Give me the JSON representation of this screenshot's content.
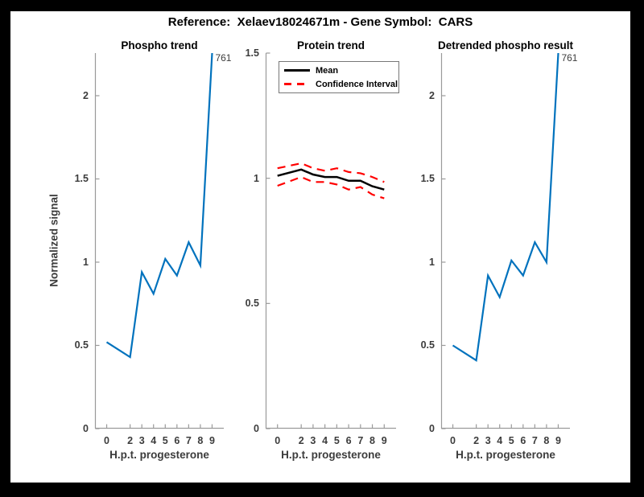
{
  "figure": {
    "title": "Reference:  Xelaev18024671m - Gene Symbol:  CARS"
  },
  "legend": {
    "mean": "Mean",
    "ci": "Confidence Interval"
  },
  "colors": {
    "phospho_line": "#0072BD",
    "mean_line": "#000000",
    "ci_line": "#FF0000",
    "axis": "#9a9a9a",
    "tick_text": "#3c3c3c"
  },
  "chart_data": [
    {
      "type": "line",
      "title": "Phospho trend",
      "xlabel": "H.p.t. progesterone",
      "ylabel": "Normalized signal",
      "x": [
        0,
        2,
        3,
        4,
        5,
        6,
        7,
        8,
        9
      ],
      "xticks": [
        "0",
        "2",
        "3",
        "4",
        "5",
        "6",
        "7",
        "8",
        "9"
      ],
      "yticks": [
        "0",
        "0.5",
        "1",
        "1.5",
        "2"
      ],
      "xlim": [
        -1,
        10
      ],
      "ylim": [
        0,
        2.256
      ],
      "grid": false,
      "series": [
        {
          "name": "phospho-signal",
          "color": "#0072BD",
          "dash": false,
          "width": 2.2,
          "values": [
            0.52,
            0.43,
            0.94,
            0.81,
            1.02,
            0.92,
            1.12,
            0.98,
            761
          ]
        }
      ],
      "annotation": {
        "text": "761",
        "x": 9,
        "series": 0
      }
    },
    {
      "type": "line",
      "title": "Protein trend",
      "xlabel": "H.p.t. progesterone",
      "ylabel": "",
      "x": [
        0,
        2,
        3,
        4,
        5,
        6,
        7,
        8,
        9
      ],
      "xticks": [
        "0",
        "2",
        "3",
        "4",
        "5",
        "6",
        "7",
        "8",
        "9"
      ],
      "yticks": [
        "0",
        "0.5",
        "1",
        "1.5"
      ],
      "xlim": [
        -1,
        10
      ],
      "ylim": [
        0,
        1.5
      ],
      "grid": false,
      "legend_position": "upper-left",
      "series": [
        {
          "name": "ci-upper",
          "color": "#FF0000",
          "dash": true,
          "width": 2.2,
          "values": [
            1.04,
            1.06,
            1.04,
            1.03,
            1.04,
            1.025,
            1.02,
            1.005,
            0.985
          ]
        },
        {
          "name": "ci-lower",
          "color": "#FF0000",
          "dash": true,
          "width": 2.2,
          "values": [
            0.97,
            1.005,
            0.985,
            0.985,
            0.975,
            0.955,
            0.965,
            0.935,
            0.92
          ]
        },
        {
          "name": "mean",
          "color": "#000000",
          "dash": false,
          "width": 2.5,
          "values": [
            1.01,
            1.035,
            1.015,
            1.005,
            1.005,
            0.99,
            0.99,
            0.968,
            0.955
          ]
        }
      ]
    },
    {
      "type": "line",
      "title": "Detrended phospho result",
      "xlabel": "H.p.t. progesterone",
      "ylabel": "",
      "x": [
        0,
        2,
        3,
        4,
        5,
        6,
        7,
        8,
        9
      ],
      "xticks": [
        "0",
        "2",
        "3",
        "4",
        "5",
        "6",
        "7",
        "8",
        "9"
      ],
      "yticks": [
        "0",
        "0.5",
        "1",
        "1.5",
        "2"
      ],
      "xlim": [
        -1,
        10
      ],
      "ylim": [
        0,
        2.256
      ],
      "grid": false,
      "series": [
        {
          "name": "detrended-phospho-signal",
          "color": "#0072BD",
          "dash": false,
          "width": 2.2,
          "values": [
            0.5,
            0.41,
            0.92,
            0.79,
            1.01,
            0.92,
            1.12,
            1.0,
            761
          ]
        }
      ],
      "annotation": {
        "text": "761",
        "x": 9,
        "series": 0
      }
    }
  ]
}
